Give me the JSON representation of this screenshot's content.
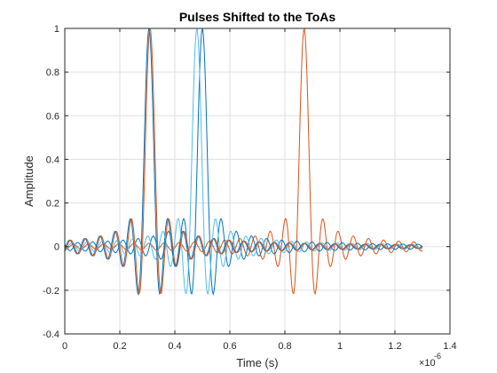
{
  "chart_data": {
    "type": "line",
    "title": "Pulses Shifted to the ToAs",
    "xlabel": "Time (s)",
    "ylabel": "Amplitude",
    "x_exponent_label": "×10",
    "x_exponent": "-6",
    "xlim": [
      0,
      1.4
    ],
    "ylim": [
      -0.4,
      1
    ],
    "x_ticks": [
      0,
      0.2,
      0.4,
      0.6,
      0.8,
      1,
      1.2,
      1.4
    ],
    "x_tick_labels": [
      "0",
      "0.2",
      "0.4",
      "0.6",
      "0.8",
      "1",
      "1.2",
      "1.4"
    ],
    "y_ticks": [
      -0.4,
      -0.2,
      0,
      0.2,
      0.4,
      0.6,
      0.8,
      1
    ],
    "y_tick_labels": [
      "-0.4",
      "-0.2",
      "0",
      "0.2",
      "0.4",
      "0.6",
      "0.8",
      "1"
    ],
    "grid": true,
    "x_range": [
      0,
      1.3
    ],
    "pulse_halfwidth": 0.0275,
    "sample_count": 400,
    "series": [
      {
        "toa": 0.306,
        "color": "#0072BD"
      },
      {
        "toa": 0.87,
        "color": "#D95319"
      },
      {
        "toa": 0.5,
        "color": "#0072BD"
      },
      {
        "toa": 0.48,
        "color": "#4DBEEE"
      },
      {
        "toa": 0.31,
        "color": "#D95319"
      }
    ]
  }
}
